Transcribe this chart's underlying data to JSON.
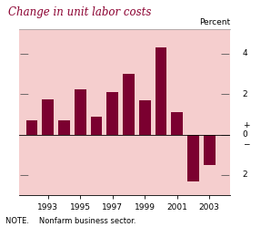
{
  "title": "Change in unit labor costs",
  "note": "NOTE.  Nonfarm business sector.",
  "ylabel_right": "Percent",
  "background_color": "#f5cece",
  "title_bg": "#ffffff",
  "bar_color": "#7b0030",
  "years": [
    1992,
    1993,
    1994,
    1995,
    1996,
    1997,
    1998,
    1999,
    2000,
    2001,
    2002,
    2003
  ],
  "values": [
    0.7,
    1.75,
    0.7,
    2.25,
    0.9,
    2.1,
    3.0,
    1.7,
    4.3,
    1.1,
    -2.3,
    -1.5
  ],
  "ylim": [
    -3.0,
    5.2
  ],
  "yticks": [
    -2,
    0,
    2,
    4
  ],
  "xlim": [
    1991.2,
    2004.3
  ],
  "xticks": [
    1993,
    1995,
    1997,
    1999,
    2001,
    2003
  ],
  "title_color": "#8b0030",
  "bar_width": 0.72
}
